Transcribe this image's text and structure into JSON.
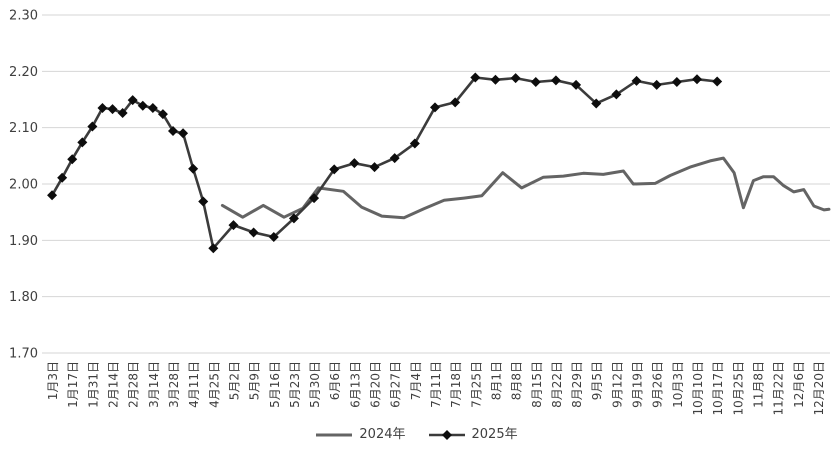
{
  "chart_data": {
    "type": "line",
    "title": "",
    "xlabel": "",
    "ylabel": "",
    "grid": "horizontal",
    "legend_position": "bottom-center",
    "y_axis": {
      "min": 1.7,
      "max": 2.3,
      "step": 0.1,
      "tick_labels": [
        "2.30",
        "2.20",
        "2.10",
        "2.00",
        "1.90",
        "1.80",
        "1.70"
      ]
    },
    "x_axis": {
      "labels": [
        "1月3日",
        "1月17日",
        "1月31日",
        "2月14日",
        "2月28日",
        "3月14日",
        "3月28日",
        "4月11日",
        "4月25日",
        "5月2日",
        "5月9日",
        "5月16日",
        "5月23日",
        "5月30日",
        "6月6日",
        "6月13日",
        "6月20日",
        "6月27日",
        "7月4日",
        "7月11日",
        "7月18日",
        "7月25日",
        "8月1日",
        "8月8日",
        "8月15日",
        "8月22日",
        "8月29日",
        "9月5日",
        "9月12日",
        "9月19日",
        "9月26日",
        "10月3日",
        "10月10日",
        "10月17日",
        "10月25日",
        "11月8日",
        "11月22日",
        "12月6日",
        "12月20日"
      ],
      "label_rotation_deg": -90
    },
    "series": [
      {
        "name": "2024年",
        "color": "#646464",
        "line_width": 3,
        "marker": "none",
        "points": [
          [
            8.45,
            1.962
          ],
          [
            9.46,
            1.941
          ],
          [
            10.48,
            1.962
          ],
          [
            11.51,
            1.941
          ],
          [
            12.45,
            1.957
          ],
          [
            13.21,
            1.993
          ],
          [
            14.45,
            1.987
          ],
          [
            15.36,
            1.959
          ],
          [
            16.36,
            1.943
          ],
          [
            17.46,
            1.94
          ],
          [
            18.45,
            1.956
          ],
          [
            19.45,
            1.971
          ],
          [
            20.44,
            1.975
          ],
          [
            21.32,
            1.979
          ],
          [
            22.36,
            2.02
          ],
          [
            23.3,
            1.993
          ],
          [
            24.38,
            2.012
          ],
          [
            25.37,
            2.014
          ],
          [
            26.36,
            2.019
          ],
          [
            27.35,
            2.017
          ],
          [
            28.35,
            2.023
          ],
          [
            28.84,
            2.0
          ],
          [
            29.92,
            2.001
          ],
          [
            30.67,
            2.015
          ],
          [
            31.66,
            2.03
          ],
          [
            32.65,
            2.041
          ],
          [
            33.31,
            2.046
          ],
          [
            33.84,
            2.02
          ],
          [
            34.3,
            1.958
          ],
          [
            34.8,
            2.006
          ],
          [
            35.3,
            2.013
          ],
          [
            35.8,
            2.013
          ],
          [
            36.3,
            1.997
          ],
          [
            36.8,
            1.986
          ],
          [
            37.3,
            1.99
          ],
          [
            37.8,
            1.961
          ],
          [
            38.3,
            1.954
          ],
          [
            38.55,
            1.955
          ]
        ]
      },
      {
        "name": "2025年",
        "color": "#3b3b3b",
        "line_width": 2.6,
        "marker": "diamond",
        "marker_color": "#0d0d0d",
        "marker_size": 5,
        "points": [
          [
            0,
            1.98
          ],
          [
            0.5,
            2.011
          ],
          [
            1,
            2.044
          ],
          [
            1.5,
            2.074
          ],
          [
            2,
            2.102
          ],
          [
            2.5,
            2.135
          ],
          [
            3,
            2.133
          ],
          [
            3.5,
            2.126
          ],
          [
            4,
            2.149
          ],
          [
            4.5,
            2.139
          ],
          [
            5,
            2.135
          ],
          [
            5.5,
            2.124
          ],
          [
            6,
            2.094
          ],
          [
            6.5,
            2.09
          ],
          [
            7,
            2.027
          ],
          [
            7.5,
            1.969
          ],
          [
            8,
            1.886
          ],
          [
            9,
            1.927
          ],
          [
            10,
            1.914
          ],
          [
            11,
            1.906
          ],
          [
            12,
            1.939
          ],
          [
            13,
            1.975
          ],
          [
            14,
            2.026
          ],
          [
            15,
            2.037
          ],
          [
            16,
            2.03
          ],
          [
            17,
            2.046
          ],
          [
            18,
            2.072
          ],
          [
            19,
            2.136
          ],
          [
            20,
            2.145
          ],
          [
            21,
            2.189
          ],
          [
            22,
            2.185
          ],
          [
            23,
            2.188
          ],
          [
            24,
            2.181
          ],
          [
            25,
            2.184
          ],
          [
            26,
            2.176
          ],
          [
            27,
            2.143
          ],
          [
            28,
            2.159
          ],
          [
            29,
            2.183
          ],
          [
            30,
            2.176
          ],
          [
            31,
            2.181
          ],
          [
            32,
            2.186
          ],
          [
            33,
            2.182
          ]
        ]
      }
    ],
    "colors": {
      "background": "#ffffff",
      "gridline": "#d6d6d6",
      "tick_label": "#3f3f3f"
    }
  }
}
